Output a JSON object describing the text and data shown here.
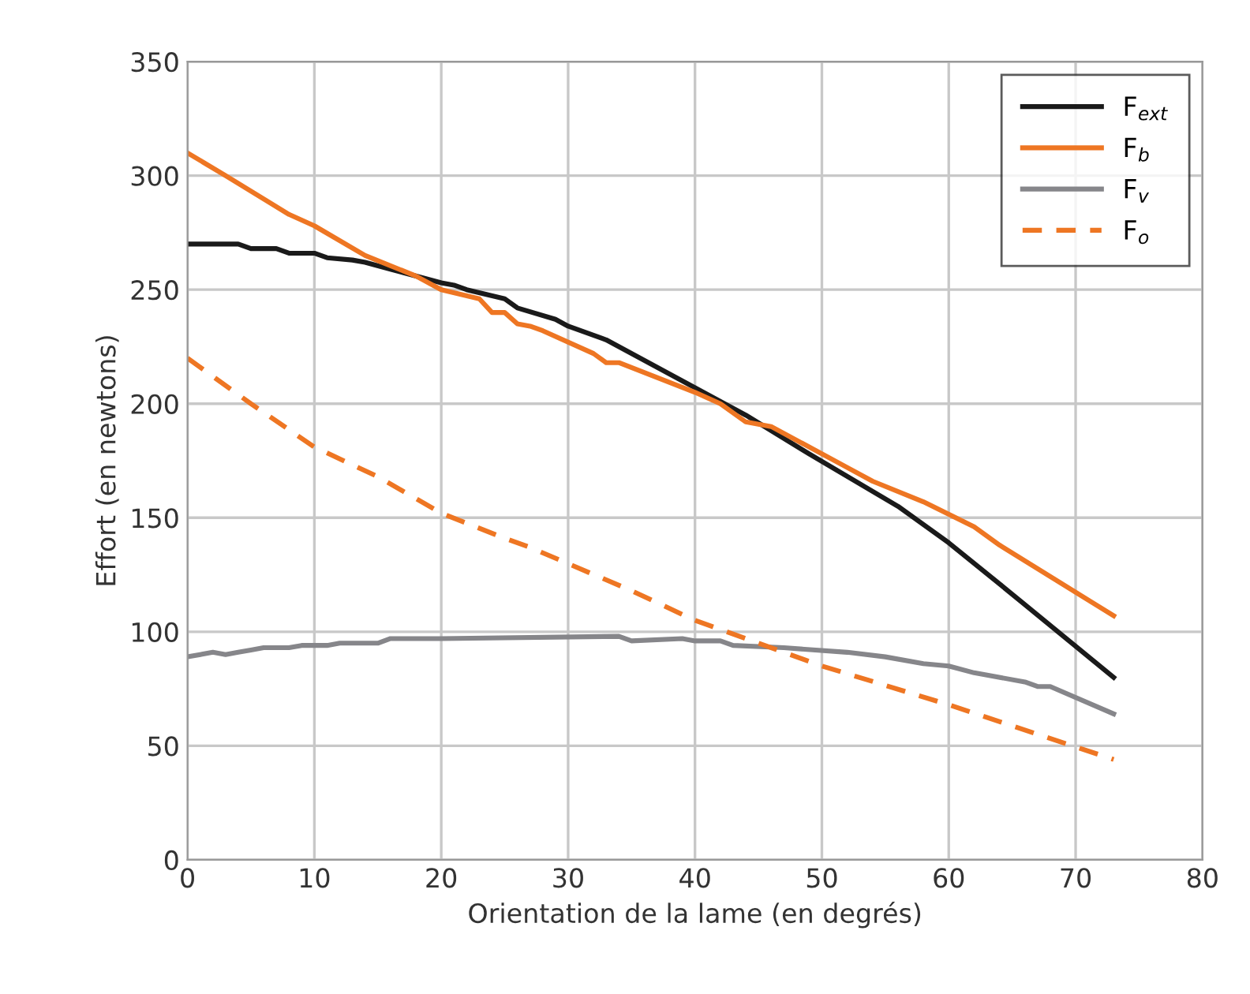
{
  "chart_data": {
    "type": "line",
    "xlabel": "Orientation de la lame (en degrés)",
    "ylabel": "Effort (en newtons)",
    "xlim": [
      0,
      80
    ],
    "ylim": [
      0,
      350
    ],
    "xticks": [
      0,
      10,
      20,
      30,
      40,
      50,
      60,
      70,
      80
    ],
    "yticks": [
      0,
      50,
      100,
      150,
      200,
      250,
      300,
      350
    ],
    "grid": true,
    "legend": "top right",
    "series": [
      {
        "name": "F$_{ext}$",
        "color": "#1a1a1a",
        "line_style": "solid",
        "x": [
          0,
          4,
          5,
          7,
          8,
          10,
          11,
          13,
          14,
          16,
          20,
          21,
          22,
          25,
          26,
          29,
          30,
          33,
          44,
          49,
          56,
          60,
          64,
          73
        ],
        "values": [
          270,
          270,
          268,
          268,
          266,
          266,
          264,
          263,
          262,
          259,
          253,
          252,
          250,
          246,
          242,
          237,
          234,
          228,
          195,
          178,
          155,
          139,
          121,
          80
        ]
      },
      {
        "name": "F$_{b}$",
        "color": "#ee7623",
        "line_style": "solid",
        "x": [
          0,
          3,
          8,
          10,
          14,
          18,
          20,
          23,
          24,
          25,
          26,
          27,
          28,
          32,
          33,
          34,
          40,
          42,
          44,
          46,
          52,
          54,
          58,
          62,
          64,
          73
        ],
        "values": [
          310,
          300,
          283,
          278,
          265,
          256,
          250,
          246,
          240,
          240,
          235,
          234,
          232,
          222,
          218,
          218,
          205,
          200,
          192,
          190,
          172,
          166,
          157,
          146,
          138,
          107
        ]
      },
      {
        "name": "F$_{v}$",
        "color": "#86868a",
        "line_style": "solid",
        "x": [
          0,
          2,
          3,
          4,
          5,
          6,
          8,
          9,
          11,
          12,
          15,
          16,
          20,
          34,
          35,
          39,
          40,
          42,
          43,
          47,
          52,
          55,
          58,
          60,
          62,
          66,
          67,
          68,
          73
        ],
        "values": [
          89,
          91,
          90,
          91,
          92,
          93,
          93,
          94,
          94,
          95,
          95,
          97,
          97,
          98,
          96,
          97,
          96,
          96,
          94,
          93,
          91,
          89,
          86,
          85,
          82,
          78,
          76,
          76,
          64
        ]
      },
      {
        "name": "F$_{o}$",
        "color": "#ee7623",
        "line_style": "dashed",
        "x": [
          0,
          5,
          10,
          15,
          20,
          25,
          27,
          35,
          40,
          50,
          60,
          73
        ],
        "values": [
          220,
          200,
          181,
          168,
          152,
          141,
          137,
          118,
          105,
          85,
          68,
          44
        ]
      }
    ]
  }
}
